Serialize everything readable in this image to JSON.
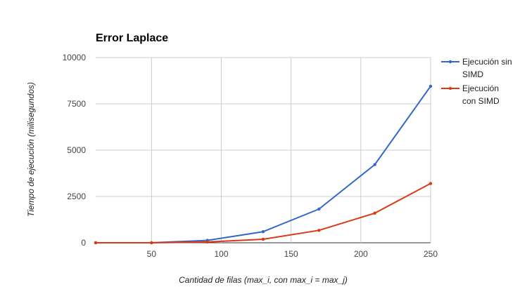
{
  "chart_data": {
    "type": "line",
    "title": "Error Laplace",
    "xlabel": "Cantidad de filas (max_i, con max_i =  max_j)",
    "ylabel": "Tiempo de ejecución (milisegundos)",
    "x": [
      10,
      50,
      90,
      130,
      170,
      210,
      250
    ],
    "xlim": [
      10,
      250
    ],
    "ylim": [
      0,
      10000
    ],
    "xticks": [
      50,
      100,
      150,
      200,
      250
    ],
    "yticks": [
      0,
      2500,
      5000,
      7500,
      10000
    ],
    "grid": true,
    "legend_position": "right",
    "series": [
      {
        "name_lines": [
          "Ejecución sin",
          "SIMD"
        ],
        "color": "#3366cc",
        "values": [
          0,
          0,
          130,
          600,
          1820,
          4220,
          8450
        ]
      },
      {
        "name_lines": [
          "Ejecución",
          "con SIMD"
        ],
        "color": "#dc3912",
        "values": [
          0,
          0,
          40,
          190,
          670,
          1600,
          3200
        ]
      }
    ]
  }
}
